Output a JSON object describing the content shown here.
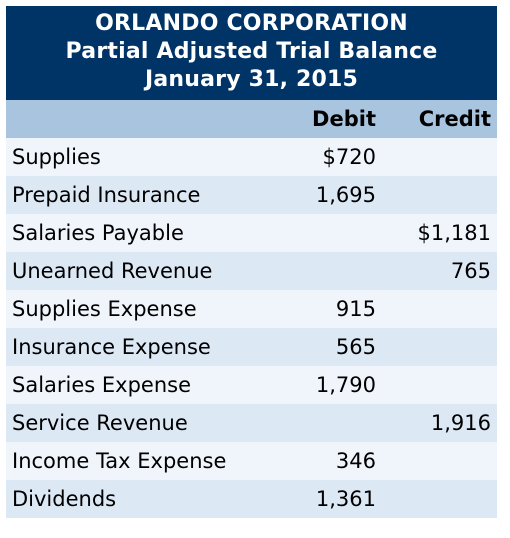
{
  "header": {
    "company": "ORLANDO CORPORATION",
    "statement": "Partial Adjusted Trial Balance",
    "date": "January 31, 2015"
  },
  "columns": {
    "account": "",
    "debit": "Debit",
    "credit": "Credit"
  },
  "rows": [
    {
      "account": "Supplies",
      "debit": "$720",
      "credit": ""
    },
    {
      "account": "Prepaid Insurance",
      "debit": "1,695",
      "credit": ""
    },
    {
      "account": "Salaries Payable",
      "debit": "",
      "credit": "$1,181"
    },
    {
      "account": "Unearned Revenue",
      "debit": "",
      "credit": "765"
    },
    {
      "account": "Supplies Expense",
      "debit": "915",
      "credit": ""
    },
    {
      "account": "Insurance Expense",
      "debit": "565",
      "credit": ""
    },
    {
      "account": "Salaries Expense",
      "debit": "1,790",
      "credit": ""
    },
    {
      "account": "Service Revenue",
      "debit": "",
      "credit": "1,916"
    },
    {
      "account": "Income Tax Expense",
      "debit": "346",
      "credit": ""
    },
    {
      "account": "Dividends",
      "debit": "1,361",
      "credit": ""
    }
  ],
  "colors": {
    "title_background": "#003366",
    "column_header_background": "#a8c4de",
    "row_band_light": "#f0f5fc",
    "row_band_dark": "#dde8f5"
  }
}
